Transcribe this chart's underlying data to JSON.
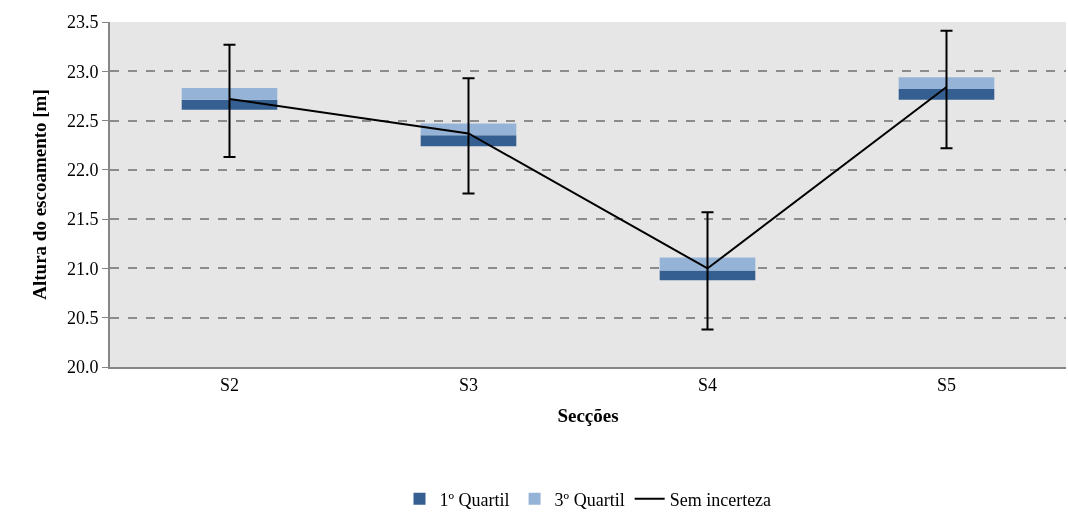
{
  "chart_data": {
    "type": "bar",
    "xlabel": "Secções",
    "ylabel": "Altura do escoamento [m]",
    "categories": [
      "S2",
      "S3",
      "S4",
      "S5"
    ],
    "series": [
      {
        "name": "1º Quartil",
        "color": "#365f91",
        "base": [
          22.61,
          22.24,
          20.88,
          22.71
        ],
        "values": [
          0.1,
          0.11,
          0.1,
          0.11
        ]
      },
      {
        "name": "3º Quartil",
        "color": "#95b3d7",
        "base": [
          22.71,
          22.35,
          20.98,
          22.82
        ],
        "values": [
          0.12,
          0.12,
          0.13,
          0.12
        ]
      },
      {
        "name": "Sem incerteza",
        "type": "line",
        "color": "#000000",
        "values": [
          22.72,
          22.37,
          21.0,
          22.84
        ],
        "errors": [
          [
            22.13,
            23.27
          ],
          [
            21.76,
            22.93
          ],
          [
            20.38,
            21.57
          ],
          [
            22.22,
            23.41
          ]
        ]
      }
    ],
    "ylim": [
      20.0,
      23.5
    ],
    "yticks": [
      {
        "value": 20.0,
        "label": "20.0"
      },
      {
        "value": 20.5,
        "label": "20.5"
      },
      {
        "value": 21.0,
        "label": "21.0"
      },
      {
        "value": 21.5,
        "label": "21.5"
      },
      {
        "value": 22.0,
        "label": "22.0"
      },
      {
        "value": 22.5,
        "label": "22.5"
      },
      {
        "value": 23.0,
        "label": "23.0"
      },
      {
        "value": 23.5,
        "label": "23.5"
      }
    ],
    "grid": "y",
    "legend": "bottom",
    "marker": "none",
    "line_style": "solid"
  }
}
